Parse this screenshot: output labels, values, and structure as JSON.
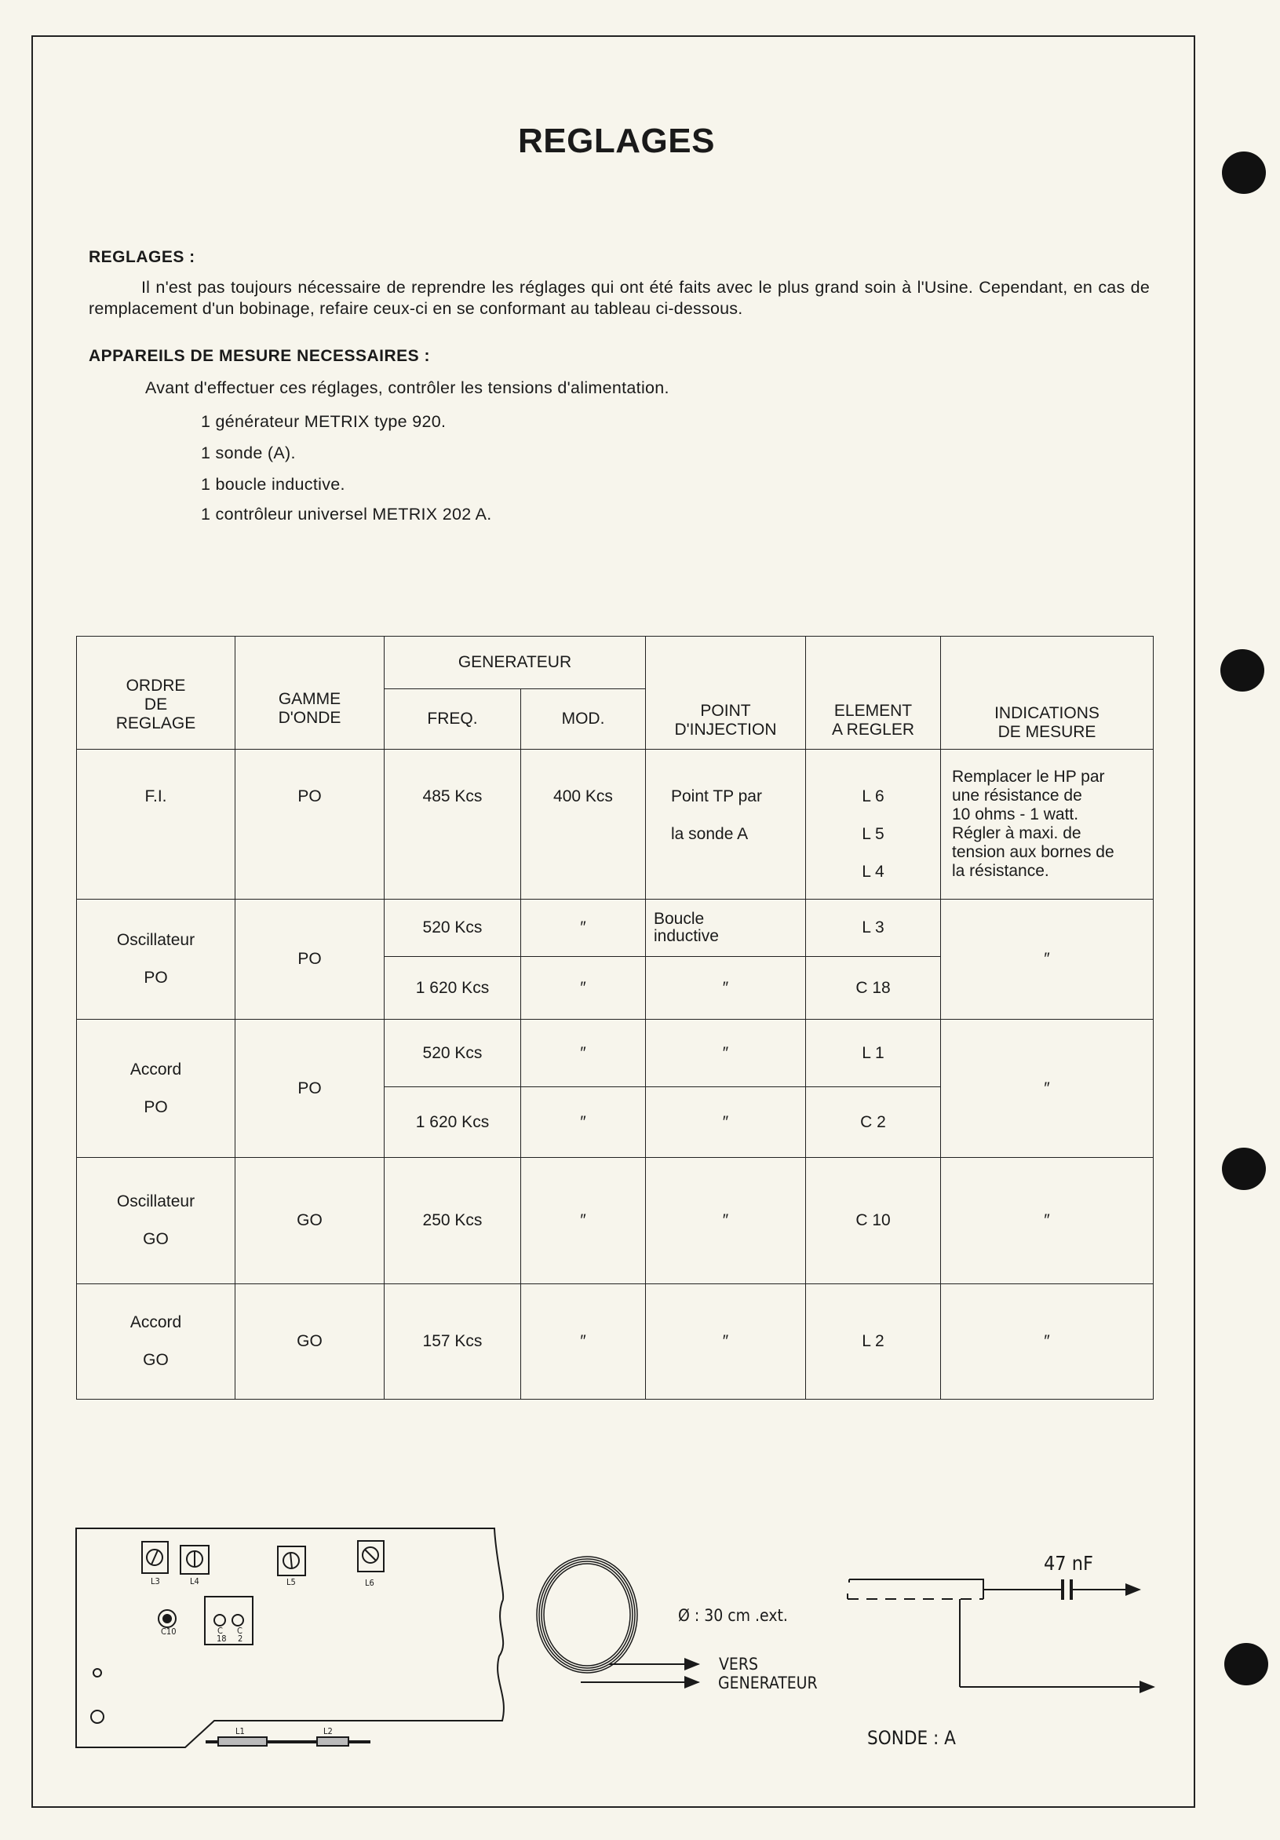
{
  "title": "REGLAGES",
  "section1": {
    "heading": "REGLAGES :",
    "paragraph": "Il n'est pas toujours nécessaire de reprendre les réglages qui ont été faits avec le plus grand soin à l'Usine. Cependant, en cas de remplacement d'un bobinage, refaire ceux-ci en se conformant au tableau ci-dessous."
  },
  "section2": {
    "heading": "APPAREILS DE MESURE NECESSAIRES :",
    "intro": "Avant d'effectuer ces réglages, contrôler les tensions d'alimentation.",
    "items": [
      "1  générateur METRIX type 920.",
      "1  sonde (A).",
      "1  boucle inductive.",
      "1  contrôleur universel METRIX 202 A."
    ]
  },
  "table": {
    "headers": {
      "ordre": [
        "ORDRE",
        "DE",
        "REGLAGE"
      ],
      "gamme": [
        "GAMME",
        "D'ONDE"
      ],
      "generateur": "GENERATEUR",
      "freq": "FREQ.",
      "mod": "MOD.",
      "point": [
        "POINT",
        "D'INJECTION"
      ],
      "element": [
        "ELEMENT",
        "A  REGLER"
      ],
      "indications": [
        "INDICATIONS",
        "DE  MESURE"
      ]
    },
    "rows": [
      {
        "ordre": [
          "F.I."
        ],
        "gamme": "PO",
        "freq": [
          "485  Kcs"
        ],
        "mod": [
          "400  Kcs"
        ],
        "point": [
          "Point  TP  par",
          "la  sonde  A"
        ],
        "element": [
          "L  6",
          "L  5",
          "L  4"
        ],
        "indications": [
          "Remplacer le HP par",
          "une résistance de",
          "10 ohms - 1 watt.",
          "Régler à maxi. de",
          "tension aux bornes de",
          "la résistance."
        ]
      },
      {
        "ordre": [
          "Oscillateur",
          "PO"
        ],
        "gamme": "PO",
        "freq": [
          "520  Kcs",
          "1 620  Kcs"
        ],
        "mod": [
          "″",
          "″"
        ],
        "point": [
          "Boucle inductive",
          "″"
        ],
        "element": [
          "L  3",
          "C  18"
        ],
        "indications": [
          "″"
        ]
      },
      {
        "ordre": [
          "Accord",
          "PO"
        ],
        "gamme": "PO",
        "freq": [
          "520  Kcs",
          "1 620  Kcs"
        ],
        "mod": [
          "″",
          "″"
        ],
        "point": [
          "″",
          "″"
        ],
        "element": [
          "L  1",
          "C  2"
        ],
        "indications": [
          "″"
        ]
      },
      {
        "ordre": [
          "Oscillateur",
          "GO"
        ],
        "gamme": "GO",
        "freq": [
          "250  Kcs"
        ],
        "mod": [
          "″"
        ],
        "point": [
          "″"
        ],
        "element": [
          "C  10"
        ],
        "indications": [
          "″"
        ]
      },
      {
        "ordre": [
          "Accord",
          "GO"
        ],
        "gamme": "GO",
        "freq": [
          "157  Kcs"
        ],
        "mod": [
          "″"
        ],
        "point": [
          "″"
        ],
        "element": [
          "L  2"
        ],
        "indications": [
          "″"
        ]
      }
    ]
  },
  "diagram": {
    "board_labels": [
      "L3",
      "L4",
      "L5",
      "L6",
      "C10",
      "C",
      "18",
      "C",
      "2",
      "L1",
      "L2"
    ],
    "loop_label": "Ø : 30 cm   .ext.",
    "vers": "VERS",
    "generateur": "GENERATEUR",
    "capacitor": "47 nF",
    "sonde": "SONDE :  A"
  }
}
